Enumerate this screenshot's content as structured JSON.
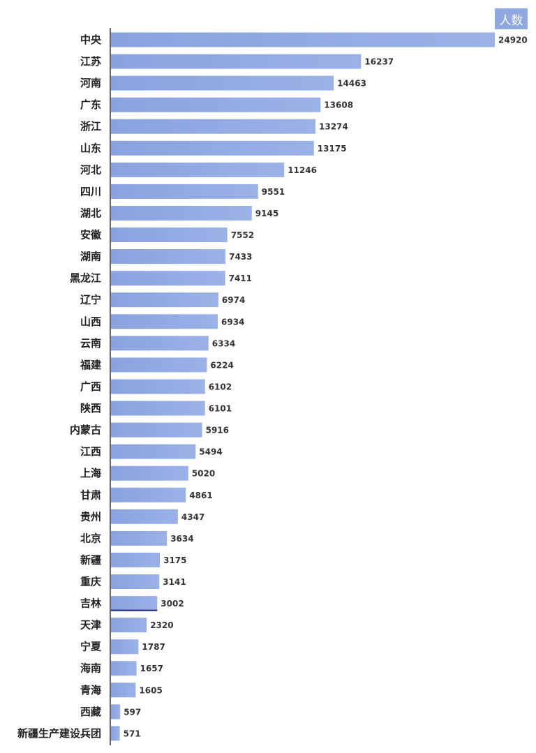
{
  "chart_data": {
    "type": "bar",
    "orientation": "horizontal",
    "legend_label": "人数",
    "categories": [
      "中央",
      "江苏",
      "河南",
      "广东",
      "浙江",
      "山东",
      "河北",
      "四川",
      "湖北",
      "安徽",
      "湖南",
      "黑龙江",
      "辽宁",
      "山西",
      "云南",
      "福建",
      "广西",
      "陕西",
      "内蒙古",
      "江西",
      "上海",
      "甘肃",
      "贵州",
      "北京",
      "新疆",
      "重庆",
      "吉林",
      "天津",
      "宁夏",
      "海南",
      "青海",
      "西藏",
      "新疆生产建设兵团"
    ],
    "values": [
      24920,
      16237,
      14463,
      13608,
      13274,
      13175,
      11246,
      9551,
      9145,
      7552,
      7433,
      7411,
      6974,
      6934,
      6334,
      6224,
      6102,
      6101,
      5916,
      5494,
      5020,
      4861,
      4347,
      3634,
      3175,
      3141,
      3002,
      2320,
      1787,
      1657,
      1605,
      597,
      571
    ],
    "xlim": [
      0,
      24920
    ],
    "grid": false,
    "bar_color": "#8fa8e0",
    "highlight_underline_color": "#1a237e"
  }
}
